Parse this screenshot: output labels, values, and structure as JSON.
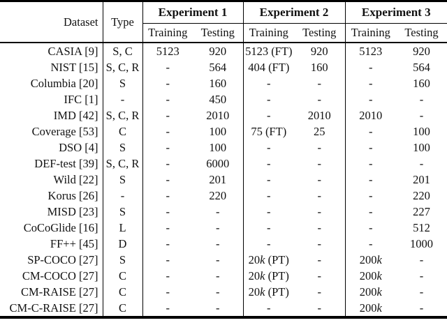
{
  "colors": {
    "background": "#ffffff",
    "text": "#111111",
    "rule": "#000000"
  },
  "table": {
    "header": {
      "dataset": "Dataset",
      "type": "Type",
      "experiments": [
        "Experiment 1",
        "Experiment 2",
        "Experiment 3"
      ],
      "sub": [
        "Training",
        "Testing"
      ]
    },
    "rows": [
      {
        "dataset": "CASIA [9]",
        "type": "S, C",
        "values": [
          "5123",
          "920",
          "5123 (FT)",
          "920",
          "5123",
          "920"
        ]
      },
      {
        "dataset": "NIST [15]",
        "type": "S, C, R",
        "values": [
          "-",
          "564",
          "404 (FT)",
          "160",
          "-",
          "564"
        ]
      },
      {
        "dataset": "Columbia [20]",
        "type": "S",
        "values": [
          "-",
          "160",
          "-",
          "-",
          "-",
          "160"
        ]
      },
      {
        "dataset": "IFC [1]",
        "type": "-",
        "values": [
          "-",
          "450",
          "-",
          "-",
          "-",
          "-"
        ]
      },
      {
        "dataset": "IMD [42]",
        "type": "S, C, R",
        "values": [
          "-",
          "2010",
          "-",
          "2010",
          "2010",
          "-"
        ]
      },
      {
        "dataset": "Coverage [53]",
        "type": "C",
        "values": [
          "-",
          "100",
          "75 (FT)",
          "25",
          "-",
          "100"
        ]
      },
      {
        "dataset": "DSO [4]",
        "type": "S",
        "values": [
          "-",
          "100",
          "-",
          "-",
          "-",
          "100"
        ]
      },
      {
        "dataset": "DEF-test [39]",
        "type": "S, C, R",
        "values": [
          "-",
          "6000",
          "-",
          "-",
          "-",
          "-"
        ]
      },
      {
        "dataset": "Wild [22]",
        "type": "S",
        "values": [
          "-",
          "201",
          "-",
          "-",
          "-",
          "201"
        ]
      },
      {
        "dataset": "Korus [26]",
        "type": "-",
        "values": [
          "-",
          "220",
          "-",
          "-",
          "-",
          "220"
        ]
      },
      {
        "dataset": "MISD [23]",
        "type": "S",
        "values": [
          "-",
          "-",
          "-",
          "-",
          "-",
          "227"
        ]
      },
      {
        "dataset": "CoCoGlide [16]",
        "type": "L",
        "values": [
          "-",
          "-",
          "-",
          "-",
          "-",
          "512"
        ]
      },
      {
        "dataset": "FF++ [45]",
        "type": "D",
        "values": [
          "-",
          "-",
          "-",
          "-",
          "-",
          "1000"
        ]
      },
      {
        "dataset": "SP-COCO [27]",
        "type": "S",
        "values": [
          "-",
          "-",
          "20k (PT)",
          "-",
          "200k",
          "-"
        ]
      },
      {
        "dataset": "CM-COCO [27]",
        "type": "C",
        "values": [
          "-",
          "-",
          "20k (PT)",
          "-",
          "200k",
          "-"
        ]
      },
      {
        "dataset": "CM-RAISE [27]",
        "type": "C",
        "values": [
          "-",
          "-",
          "20k (PT)",
          "-",
          "200k",
          "-"
        ]
      },
      {
        "dataset": "CM-C-RAISE [27]",
        "type": "C",
        "values": [
          "-",
          "-",
          "-",
          "-",
          "200k",
          "-"
        ]
      }
    ]
  }
}
